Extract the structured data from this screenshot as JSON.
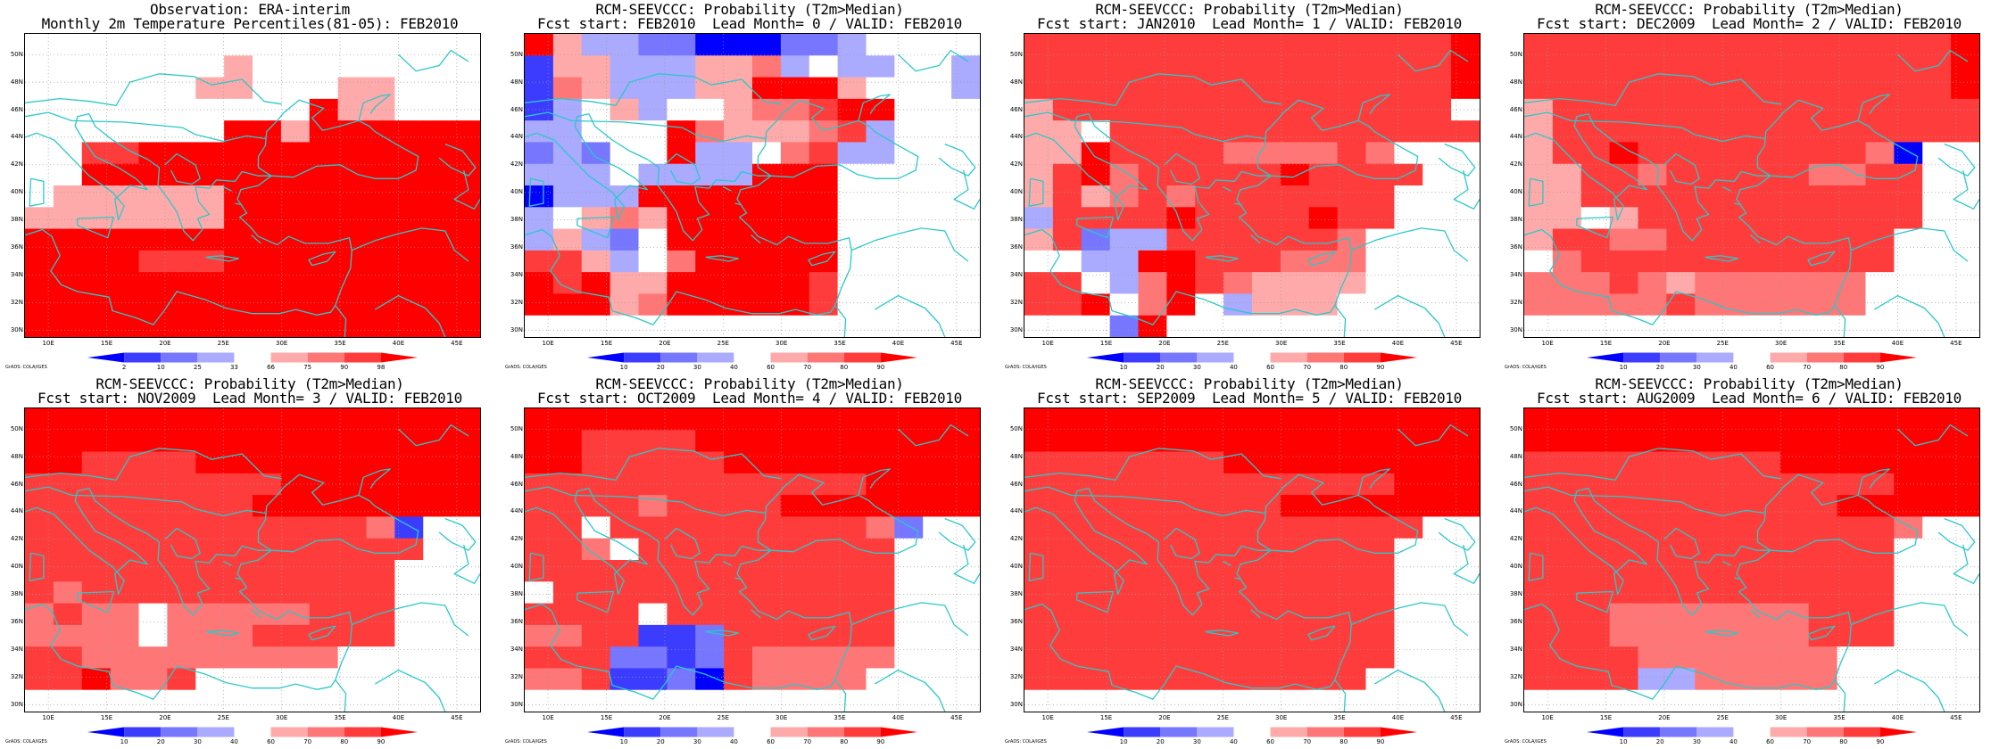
{
  "grads_label": "GrADS: COLA/IGES",
  "lat_labels": [
    "50N",
    "48N",
    "46N",
    "44N",
    "42N",
    "40N",
    "38N",
    "36N",
    "34N",
    "32N",
    "30N"
  ],
  "lon_labels": [
    "10E",
    "15E",
    "20E",
    "25E",
    "30E",
    "35E",
    "40E",
    "45E"
  ],
  "colors": {
    "levels": [
      "#0000ff",
      "#3c3cff",
      "#7676ff",
      "#aaaaff",
      "#ffffff",
      "#ffffff",
      "#ffaaaa",
      "#ff7676",
      "#ff3c3c",
      "#ff0000"
    ],
    "coast": "#2cc8c8",
    "grid": "#999999"
  },
  "colorbar": {
    "observation_labels": [
      "2",
      "10",
      "25",
      "33",
      "66",
      "75",
      "90",
      "98"
    ],
    "forecast_labels": [
      "10",
      "20",
      "30",
      "40",
      "60",
      "70",
      "80",
      "90"
    ]
  },
  "panels": [
    {
      "title1": "Observation: ERA-interim",
      "title2": "Monthly 2m Temperature Percentiles(81-05): FEB2010",
      "bar": "observation",
      "grid": [
        "4444444444444444",
        "4444444644444444",
        "4444446644466444",
        "4444444444966444",
        "4444444996999999",
        "4488999999999999",
        "4499999999999999",
        "4666666999999999",
        "6666666999999999",
        "9999999999999999",
        "9999888999999999",
        "9999999999999999",
        "9999999999999999",
        "9999999999999999"
      ]
    },
    {
      "title1": "RCM-SEEVCCC: Probability (T2m>Median)",
      "title2": "Fcst start: FEB2010  Lead Month= 0 / VALID: FEB2010",
      "bar": "forecast",
      "grid": [
        "9633220002234444",
        "1663336673433443",
        "1763336699964443",
        "1346344677899444",
        "3344497666783444",
        "2324493347833444",
        "3334333399944444",
        "0333999999944444",
        "3467699999944444",
        "3632499999944444",
        "8863579999944444",
        "9896699999844444",
        "9996799999844444",
        "4444444444444444"
      ]
    },
    {
      "title1": "RCM-SEEVCCC: Probability (T2m>Median)",
      "title2": "Fcst start: JAN2010  Lead Month= 1 / VALID: FEB2010",
      "bar": "forecast",
      "grid": [
        "8888888888888889",
        "8888888888888889",
        "8888888888888889",
        "6888888888888884",
        "6648888888888888",
        "6698888777787444",
        "6897888889888844",
        "6867878888888444",
        "3888898888988444",
        "6823388888874444",
        "4433998887774444",
        "8843798766664444",
        "8894794366644444",
        "4442944444444444"
      ]
    },
    {
      "title1": "RCM-SEEVCCC: Probability (T2m>Median)",
      "title2": "Fcst start: DEC2009  Lead Month= 2 / VALID: FEB2010",
      "bar": "forecast",
      "grid": [
        "8888888888888889",
        "8888888888888889",
        "8888888888888889",
        "6888888888888888",
        "6888888888888888",
        "6889888888887044",
        "6688788888778844",
        "6688888888888844",
        "6646888888888844",
        "6887788888888444",
        "4788888888888444",
        "7778767777774444",
        "7777787777774444",
        "4444444444444444"
      ]
    },
    {
      "title1": "RCM-SEEVCCC: Probability (T2m>Median)",
      "title2": "Fcst start: NOV2009  Lead Month= 3 / VALID: FEB2010",
      "bar": "forecast",
      "grid": [
        "9999999999999999",
        "9999999999999999",
        "9988889999999999",
        "8888888889999999",
        "8888888899999999",
        "8888888888887144",
        "8888888888888844",
        "8888888888888444",
        "8788888888888444",
        "7877477777888444",
        "7777477788888444",
        "8877777777744444",
        "8897784444444444",
        "4444444444444444"
      ]
    },
    {
      "title1": "RCM-SEEVCCC: Probability (T2m>Median)",
      "title2": "Fcst start: OCT2009  Lead Month= 4 / VALID: FEB2010",
      "bar": "forecast",
      "grid": [
        "9999999999999999",
        "9988889999999999",
        "9988888999999999",
        "8888888888889999",
        "8888788889999999",
        "8848888888887244",
        "8874888888888444",
        "8888888888888444",
        "4888888888888444",
        "8888488888888444",
        "7788112888888444",
        "8882212877777444",
        "7781120877774444",
        "4444444444444444"
      ]
    },
    {
      "title1": "RCM-SEEVCCC: Probability (T2m>Median)",
      "title2": "Fcst start: SEP2009  Lead Month= 5 / VALID: FEB2010",
      "bar": "forecast",
      "grid": [
        "9999999999999999",
        "9999999999999999",
        "8888888999999999",
        "8888888888888999",
        "8888888889999999",
        "8888888888888844",
        "8888888888888444",
        "8888888888888444",
        "8888888888888444",
        "8888888888888444",
        "8888888888888444",
        "8888888888888444",
        "8888888888884444",
        "4444444444444444"
      ]
    },
    {
      "title1": "RCM-SEEVCCC: Probability (T2m>Median)",
      "title2": "Fcst start: AUG2009  Lead Month= 6 / VALID: FEB2010",
      "bar": "forecast",
      "grid": [
        "9999999999999999",
        "9999999999999999",
        "8888888889999999",
        "8888888888888999",
        "8888888888899999",
        "8888888888888744",
        "8888888888888444",
        "8888888888888444",
        "8888888888888444",
        "8887777777888444",
        "8887777777888444",
        "8888777777744444",
        "8888337777744444",
        "4444444444444444"
      ]
    }
  ]
}
